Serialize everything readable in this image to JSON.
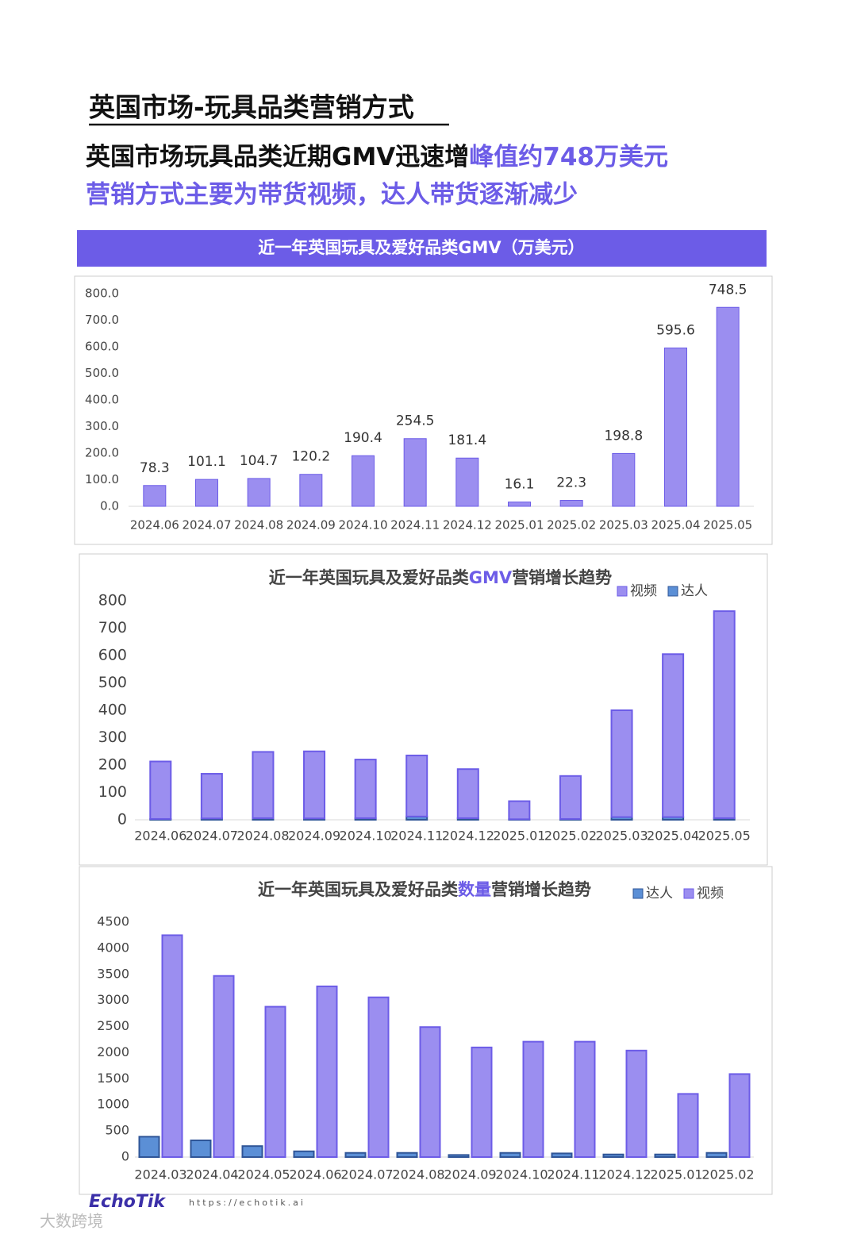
{
  "header": {
    "title": "英国市场-玩具品类营销方式",
    "headline": [
      "英国市场玩具品类近期GMV迅速增",
      "峰值约748万美元"
    ],
    "subline": "营销方式主要为带货视频，达人带货逐渐减少"
  },
  "chart_data": [
    {
      "type": "bar",
      "title": "近一年英国玩具及爱好品类GMV（万美元）",
      "categories": [
        "2024.06",
        "2024.07",
        "2024.08",
        "2024.09",
        "2024.10",
        "2024.11",
        "2024.12",
        "2025.01",
        "2025.02",
        "2025.03",
        "2025.04",
        "2025.05"
      ],
      "values": [
        78.3,
        101.1,
        104.7,
        120.2,
        190.4,
        254.5,
        181.4,
        16.1,
        22.3,
        198.8,
        595.6,
        748.5
      ],
      "color": "#9b8ef0",
      "ylim": [
        0,
        800
      ],
      "yticks": [
        {
          "value": 0,
          "label": "0.0"
        },
        {
          "value": 100,
          "label": "100.0"
        },
        {
          "value": 200,
          "label": "200.0"
        },
        {
          "value": 300,
          "label": "300.0"
        },
        {
          "value": 400,
          "label": "400.0"
        },
        {
          "value": 500,
          "label": "500.0"
        },
        {
          "value": 600,
          "label": "600.0"
        },
        {
          "value": 700,
          "label": "700.0"
        },
        {
          "value": 800,
          "label": "800.0"
        }
      ],
      "grid": false
    },
    {
      "type": "stacked_bar",
      "title": [
        "近一年英国玩具及爱好品类",
        "GMV",
        "营销增长趋势"
      ],
      "categories": [
        "2024.06",
        "2024.07",
        "2024.08",
        "2024.09",
        "2024.10",
        "2024.11",
        "2024.12",
        "2025.01",
        "2025.02",
        "2025.03",
        "2025.04",
        "2025.05"
      ],
      "series": [
        {
          "name": "视频",
          "color": "#9b8ef0",
          "values": [
            210,
            163,
            242,
            245,
            214,
            223,
            179,
            66,
            157,
            390,
            595,
            756
          ]
        },
        {
          "name": "达人",
          "color": "#5b8fd6",
          "values": [
            3,
            5,
            6,
            5,
            6,
            12,
            6,
            2,
            3,
            10,
            10,
            6
          ]
        }
      ],
      "ylim": [
        0,
        800
      ],
      "yticks": [
        0,
        100,
        200,
        300,
        400,
        500,
        600,
        700,
        800
      ],
      "grid": false
    },
    {
      "type": "grouped_bar",
      "title": [
        "近一年英国玩具及爱好品类",
        "数量",
        "营销增长趋势"
      ],
      "categories": [
        "2024.03",
        "2024.04",
        "2024.05",
        "2024.06",
        "2024.07",
        "2024.08",
        "2024.09",
        "2024.10",
        "2024.11",
        "2024.12",
        "2025.01",
        "2025.02"
      ],
      "series": [
        {
          "name": "达人",
          "color": "#5b8fd6",
          "values": [
            390,
            320,
            210,
            110,
            80,
            80,
            40,
            80,
            70,
            50,
            50,
            80
          ]
        },
        {
          "name": "视频",
          "color": "#9b8ef0",
          "values": [
            4250,
            3470,
            2880,
            3270,
            3060,
            2490,
            2100,
            2210,
            2210,
            2040,
            1210,
            1590
          ]
        }
      ],
      "ylim": [
        0,
        4500
      ],
      "yticks": [
        0,
        500,
        1000,
        1500,
        2000,
        2500,
        3000,
        3500,
        4000,
        4500
      ],
      "grid": false
    }
  ],
  "footer": {
    "logo": "EchoTik",
    "url": "https://echotik.ai",
    "watermark": "大数跨境"
  }
}
